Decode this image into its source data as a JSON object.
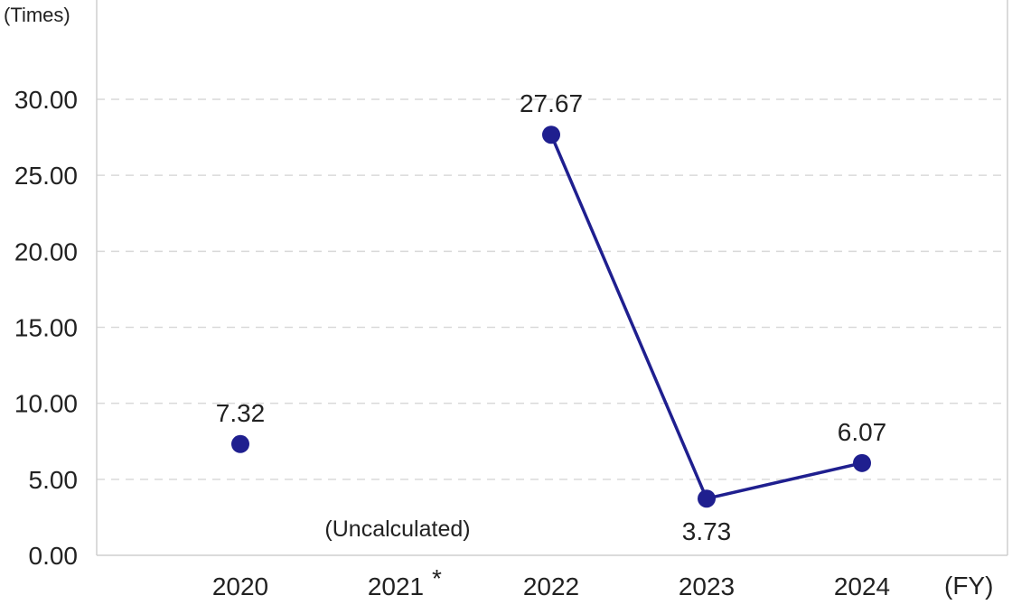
{
  "chart_data": {
    "type": "line",
    "y_unit_label": "(Times)",
    "x_unit_label": "(FY)",
    "categories": [
      "2020",
      "2021",
      "2022",
      "2023",
      "2024"
    ],
    "category_marks": [
      "",
      "*",
      "",
      "",
      ""
    ],
    "ylim": [
      0,
      30
    ],
    "yticks": [
      "0.00",
      "5.00",
      "10.00",
      "15.00",
      "20.00",
      "25.00",
      "30.00"
    ],
    "ytick_values": [
      0,
      5,
      10,
      15,
      20,
      25,
      30
    ],
    "grid": true,
    "series": [
      {
        "values": [
          7.32,
          null,
          27.67,
          3.73,
          6.07
        ],
        "labels": [
          "7.32",
          "",
          "27.67",
          "3.73",
          "6.07"
        ],
        "color": "#1f1f8f"
      }
    ],
    "missing_note": "(Uncalculated)"
  }
}
